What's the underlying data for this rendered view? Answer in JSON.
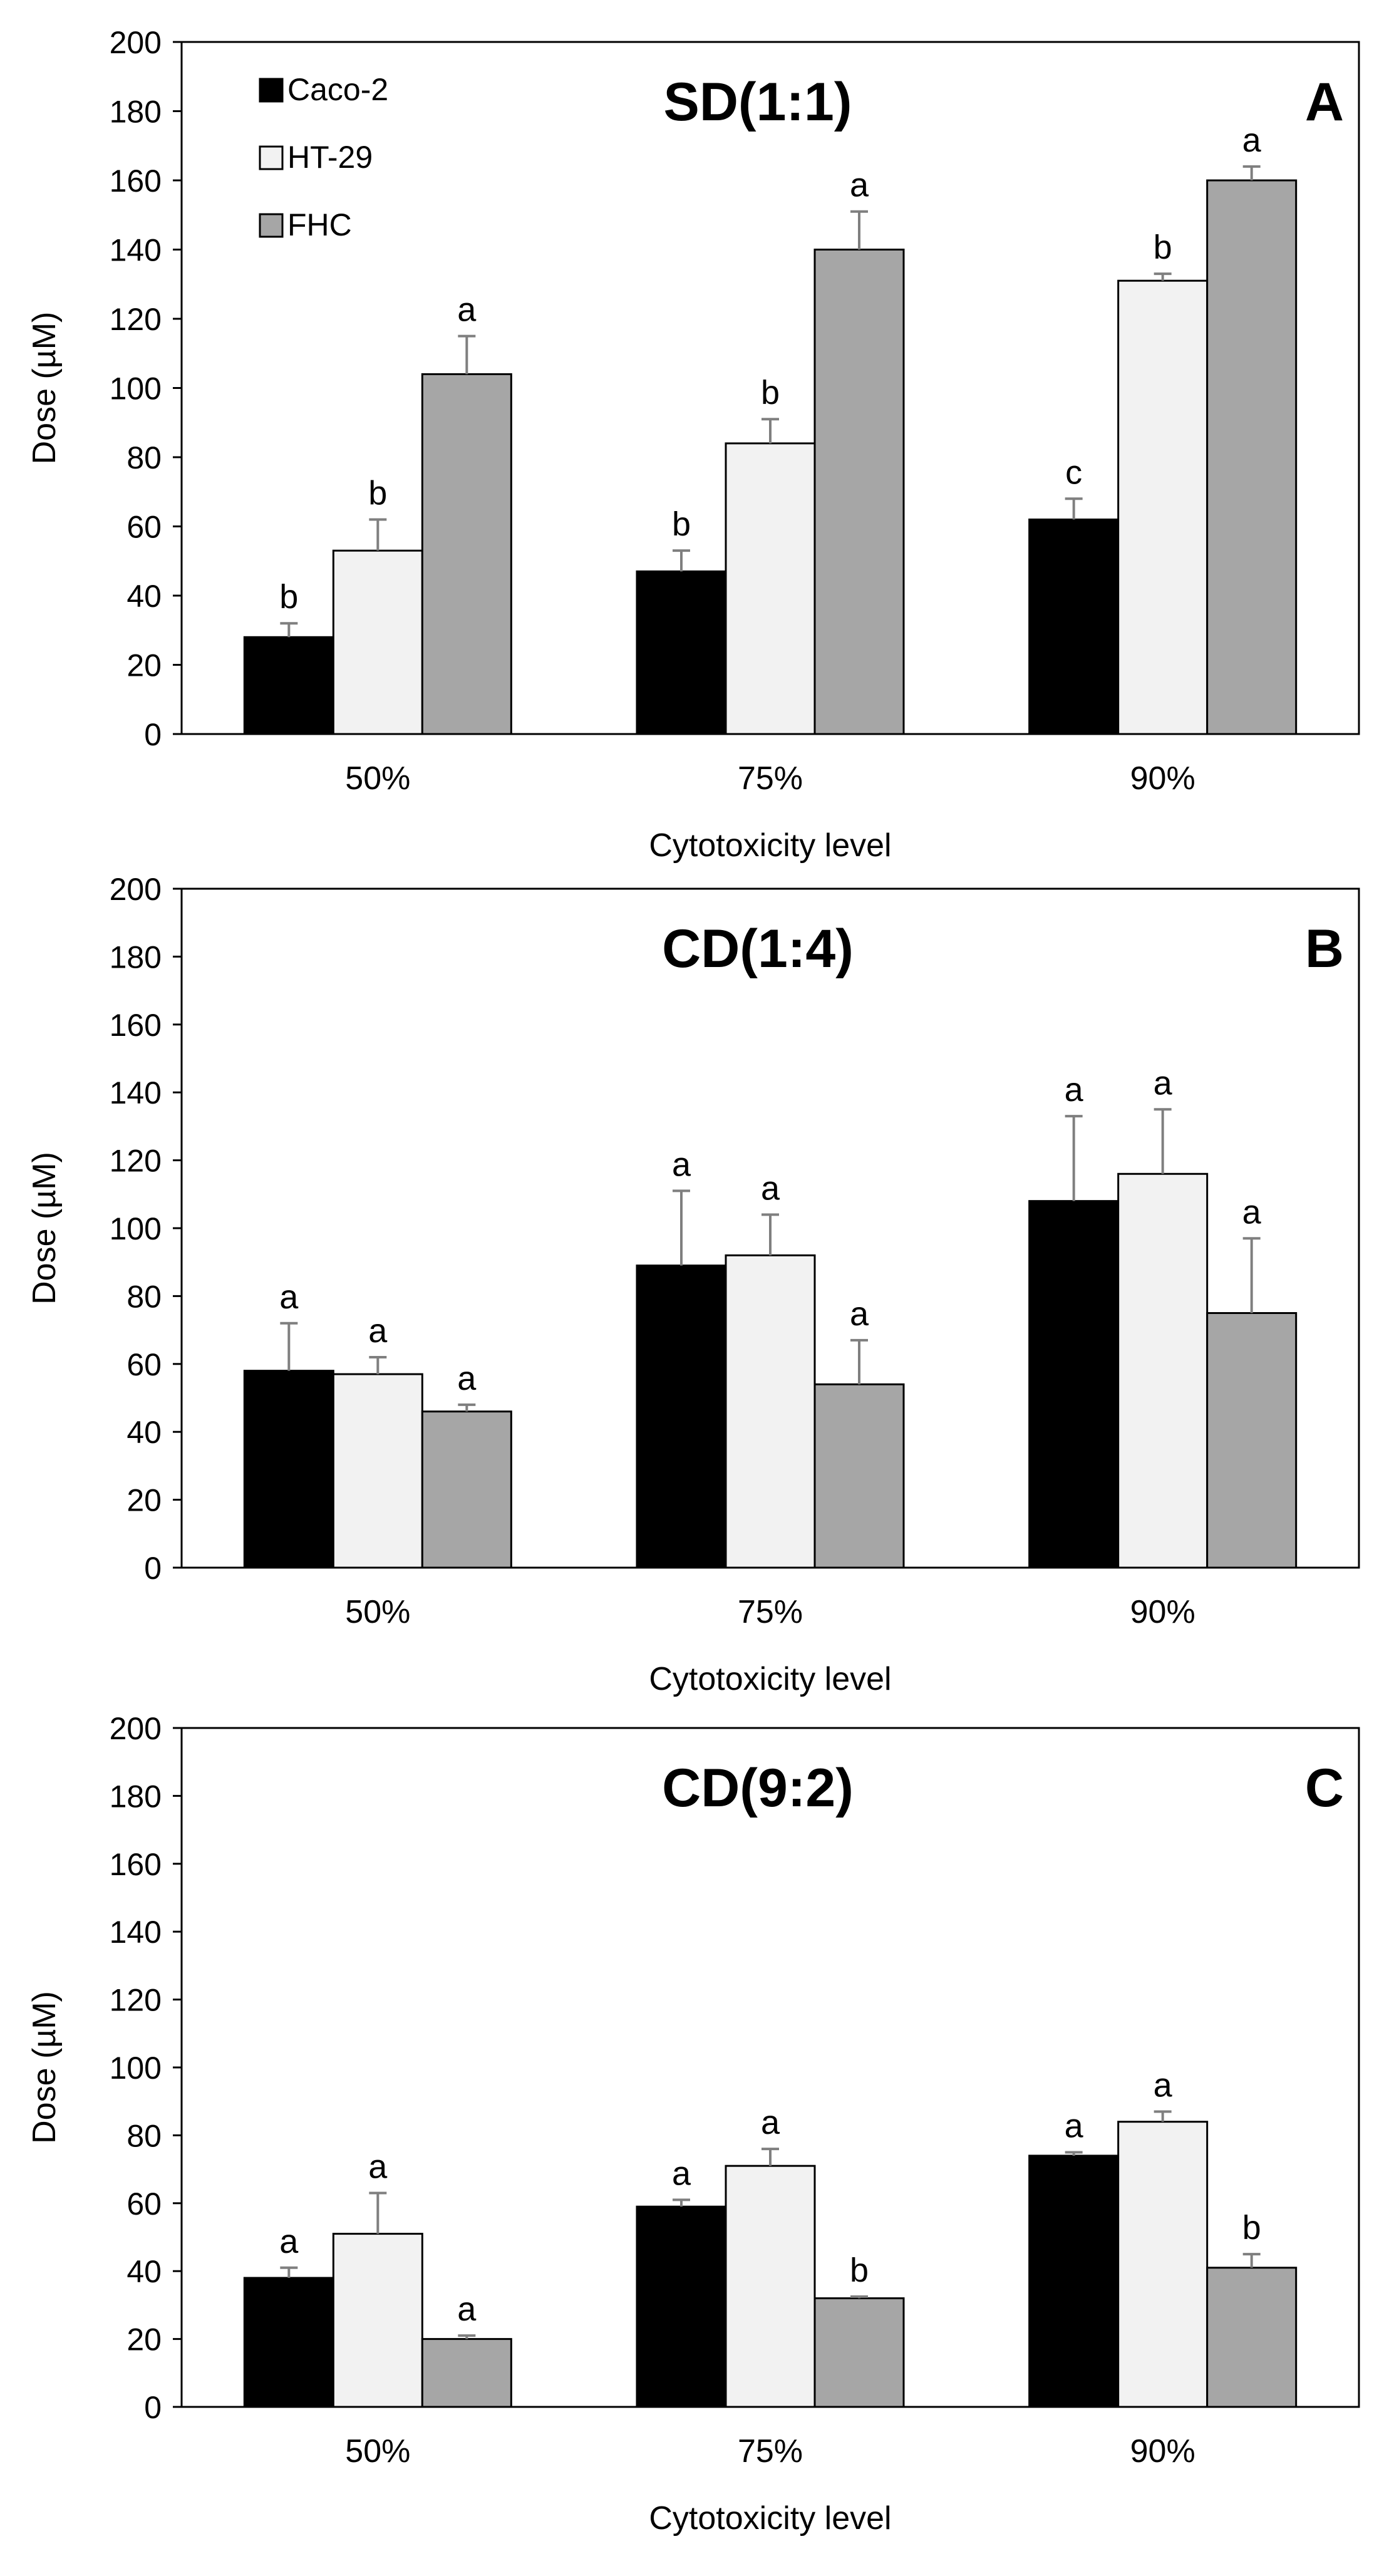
{
  "legend": {
    "entries": [
      {
        "name": "Caco-2",
        "color": "#000000"
      },
      {
        "name": "HT-29",
        "color": "#f2f2f2"
      },
      {
        "name": "FHC",
        "color": "#a6a6a6"
      }
    ],
    "placement": "top-left (panel A only)"
  },
  "chart_data": [
    {
      "type": "bar",
      "title": "SD(1:1)",
      "panel_letter": "A",
      "xlabel": "Cytotoxicity level",
      "ylabel": "Dose (µM)",
      "ylim": [
        0,
        200
      ],
      "yticks": [
        "0",
        "20",
        "40",
        "60",
        "80",
        "100",
        "120",
        "140",
        "160",
        "180",
        "200"
      ],
      "categories": [
        "50%",
        "75%",
        "90%"
      ],
      "legend_shown": true,
      "series": [
        {
          "name": "Caco-2",
          "values": [
            28,
            47,
            62
          ],
          "errors": [
            4,
            6,
            6
          ],
          "labels": [
            "b",
            "b",
            "c"
          ]
        },
        {
          "name": "HT-29",
          "values": [
            53,
            84,
            131
          ],
          "errors": [
            9,
            7,
            2
          ],
          "labels": [
            "b",
            "b",
            "b"
          ]
        },
        {
          "name": "FHC",
          "values": [
            104,
            140,
            160
          ],
          "errors": [
            11,
            11,
            4
          ],
          "labels": [
            "a",
            "a",
            "a"
          ]
        }
      ]
    },
    {
      "type": "bar",
      "title": "CD(1:4)",
      "panel_letter": "B",
      "xlabel": "Cytotoxicity level",
      "ylabel": "Dose (µM)",
      "ylim": [
        0,
        200
      ],
      "yticks": [
        "0",
        "20",
        "40",
        "60",
        "80",
        "100",
        "120",
        "140",
        "160",
        "180",
        "200"
      ],
      "categories": [
        "50%",
        "75%",
        "90%"
      ],
      "legend_shown": false,
      "series": [
        {
          "name": "Caco-2",
          "values": [
            58,
            89,
            108
          ],
          "errors": [
            14,
            22,
            25
          ],
          "labels": [
            "a",
            "a",
            "a"
          ]
        },
        {
          "name": "HT-29",
          "values": [
            57,
            92,
            116
          ],
          "errors": [
            5,
            12,
            19
          ],
          "labels": [
            "a",
            "a",
            "a"
          ]
        },
        {
          "name": "FHC",
          "values": [
            46,
            54,
            75
          ],
          "errors": [
            2,
            13,
            22
          ],
          "labels": [
            "a",
            "a",
            "a"
          ]
        }
      ]
    },
    {
      "type": "bar",
      "title": "CD(9:2)",
      "panel_letter": "C",
      "xlabel": "Cytotoxicity level",
      "ylabel": "Dose (µM)",
      "ylim": [
        0,
        200
      ],
      "yticks": [
        "0",
        "20",
        "40",
        "60",
        "80",
        "100",
        "120",
        "140",
        "160",
        "180",
        "200"
      ],
      "categories": [
        "50%",
        "75%",
        "90%"
      ],
      "legend_shown": false,
      "series": [
        {
          "name": "Caco-2",
          "values": [
            38,
            59,
            74
          ],
          "errors": [
            3,
            2,
            1
          ],
          "labels": [
            "a",
            "a",
            "a"
          ]
        },
        {
          "name": "HT-29",
          "values": [
            51,
            71,
            84
          ],
          "errors": [
            12,
            5,
            3
          ],
          "labels": [
            "a",
            "a",
            "a"
          ]
        },
        {
          "name": "FHC",
          "values": [
            20,
            32,
            41
          ],
          "errors": [
            1,
            0.5,
            4
          ],
          "labels": [
            "a",
            "b",
            "b"
          ]
        }
      ]
    }
  ]
}
